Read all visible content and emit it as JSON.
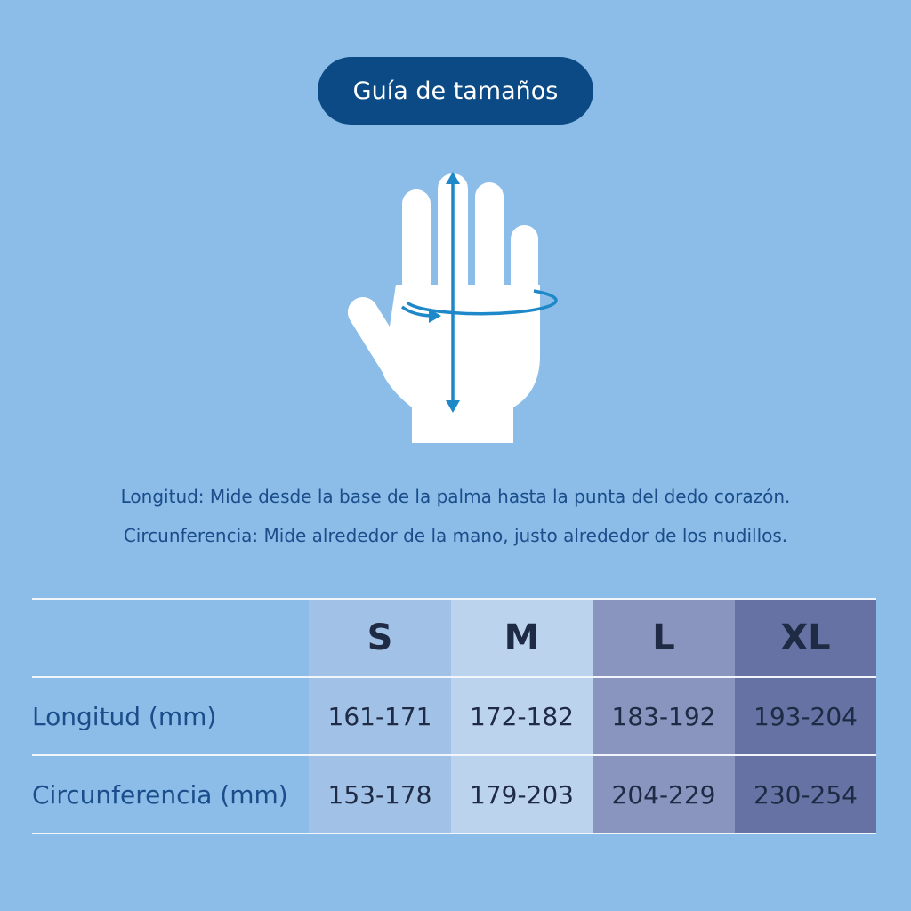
{
  "header": {
    "title": "Guía de tamaños"
  },
  "notes": [
    "Longitud: Mide desde la base de la palma hasta la punta del dedo corazón.",
    "Circunferencia: Mide alrededor de la mano, justo alrededor de los nudillos."
  ],
  "table": {
    "columns": [
      "S",
      "M",
      "L",
      "XL"
    ],
    "rows": [
      [
        "Longitud (mm)",
        "161-171",
        "172-182",
        "183-192",
        "193-204"
      ],
      [
        "Circunferencia (mm)",
        "153-178",
        "179-203",
        "204-229",
        "230-254"
      ]
    ]
  }
}
